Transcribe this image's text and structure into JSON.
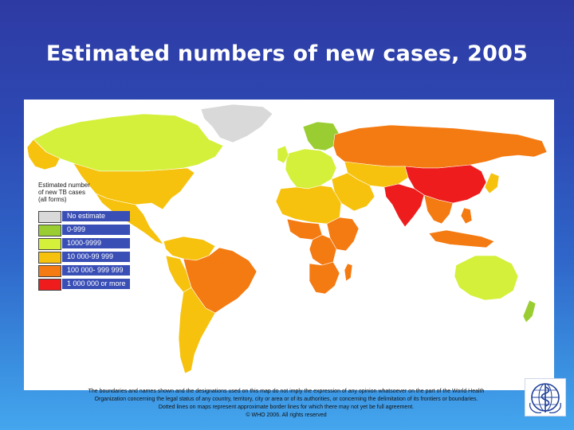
{
  "title": "Estimated numbers of new cases, 2005",
  "legend": {
    "title_lines": [
      "Estimated number",
      "of new TB cases",
      "(all forms)"
    ],
    "items": [
      {
        "label": "No estimate",
        "color": "#d9d9d9"
      },
      {
        "label": "0-999",
        "color": "#9acd32"
      },
      {
        "label": "1000-9999",
        "color": "#d5f03a"
      },
      {
        "label": "10 000-99 999",
        "color": "#f6c20e"
      },
      {
        "label": "100 000- 999 999",
        "color": "#f47a12"
      },
      {
        "label": "1 000 000 or more",
        "color": "#ee1c1c"
      }
    ]
  },
  "regions": [
    {
      "name": "Greenland",
      "category": "No estimate"
    },
    {
      "name": "Canada",
      "category": "1000-9999"
    },
    {
      "name": "United States",
      "category": "10 000-99 999"
    },
    {
      "name": "Mexico & Central America",
      "category": "10 000-99 999"
    },
    {
      "name": "Brazil",
      "category": "100 000- 999 999"
    },
    {
      "name": "Peru",
      "category": "10 000-99 999"
    },
    {
      "name": "Southern South America",
      "category": "10 000-99 999"
    },
    {
      "name": "Western Europe",
      "category": "1000-9999"
    },
    {
      "name": "Scandinavia",
      "category": "0-999"
    },
    {
      "name": "Russia",
      "category": "100 000- 999 999"
    },
    {
      "name": "Central Asia",
      "category": "10 000-99 999"
    },
    {
      "name": "China",
      "category": "1 000 000 or more"
    },
    {
      "name": "India",
      "category": "1 000 000 or more"
    },
    {
      "name": "South-East Asia",
      "category": "100 000- 999 999"
    },
    {
      "name": "Indonesia",
      "category": "100 000- 999 999"
    },
    {
      "name": "North Africa",
      "category": "10 000-99 999"
    },
    {
      "name": "Nigeria",
      "category": "100 000- 999 999"
    },
    {
      "name": "East Africa",
      "category": "100 000- 999 999"
    },
    {
      "name": "DR Congo",
      "category": "100 000- 999 999"
    },
    {
      "name": "South Africa",
      "category": "100 000- 999 999"
    },
    {
      "name": "Australia",
      "category": "1000-9999"
    },
    {
      "name": "New Zealand",
      "category": "0-999"
    }
  ],
  "disclaimer_lines": [
    "The boundaries and names shown and the designations used on this map do not imply the expression of any opinion whatsoever on the part of the World Health",
    "Organization concerning the legal status of any country, territory, city or area or of its authorities, or concerning the delimitation of its frontiers or boundaries.",
    "Dotted lines on maps represent approximate border lines for which there may not yet be full agreement.",
    "© WHO 2006. All rights reserved"
  ],
  "logo": {
    "name": "WHO emblem"
  }
}
